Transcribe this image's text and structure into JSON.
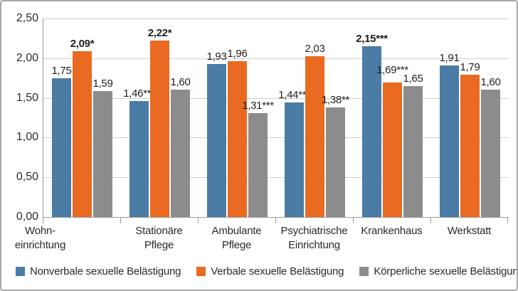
{
  "chart_data": {
    "type": "bar",
    "categories": [
      "Stationäre\nPflege",
      "Ambulante\nPflege",
      "Psychiatrische\nEinrichtung",
      "Krankenhaus",
      "Werkstatt",
      "Wohn-\neinrichtung"
    ],
    "series": [
      {
        "name": "Nonverbale sexuelle Belästigung",
        "color": "#4a7ca5",
        "values": [
          1.75,
          1.46,
          1.93,
          1.44,
          2.15,
          1.91
        ],
        "labels": [
          "1,75",
          "1,46***",
          "1,93",
          "1,44***",
          "2,15***",
          "1,91"
        ],
        "bold": [
          0,
          0,
          0,
          0,
          1,
          0
        ]
      },
      {
        "name": "Verbale sexuelle Belästigung",
        "color": "#ea6a21",
        "values": [
          2.09,
          2.22,
          1.96,
          2.03,
          1.69,
          1.79
        ],
        "labels": [
          "2,09*",
          "2,22*",
          "1,96",
          "2,03",
          "1,69***",
          "1,79"
        ],
        "bold": [
          1,
          1,
          0,
          0,
          0,
          0
        ]
      },
      {
        "name": "Körperliche sexuelle Belästigung",
        "color": "#8c8c8c",
        "values": [
          1.59,
          1.6,
          1.31,
          1.38,
          1.65,
          1.6
        ],
        "labels": [
          "1,59",
          "1,60",
          "1,31***",
          "1,38**",
          "1,65",
          "1,60"
        ],
        "bold": [
          0,
          0,
          0,
          0,
          0,
          0
        ]
      }
    ],
    "y_ticks": [
      "2,50",
      "2,00",
      "1,50",
      "1,00",
      "0,50",
      "0,00"
    ],
    "y_tick_values": [
      2.5,
      2.0,
      1.5,
      1.0,
      0.5,
      0.0
    ],
    "ylim": [
      0,
      2.5
    ],
    "grid": true,
    "legend_position": "bottom",
    "title": "",
    "xlabel": "",
    "ylabel": ""
  },
  "colors": {
    "axis": "#9b9b9b",
    "gridline": "#cfcfcf",
    "frame_border": "#a8a8a8",
    "text": "#1f1f1f",
    "background": "#ffffff"
  }
}
